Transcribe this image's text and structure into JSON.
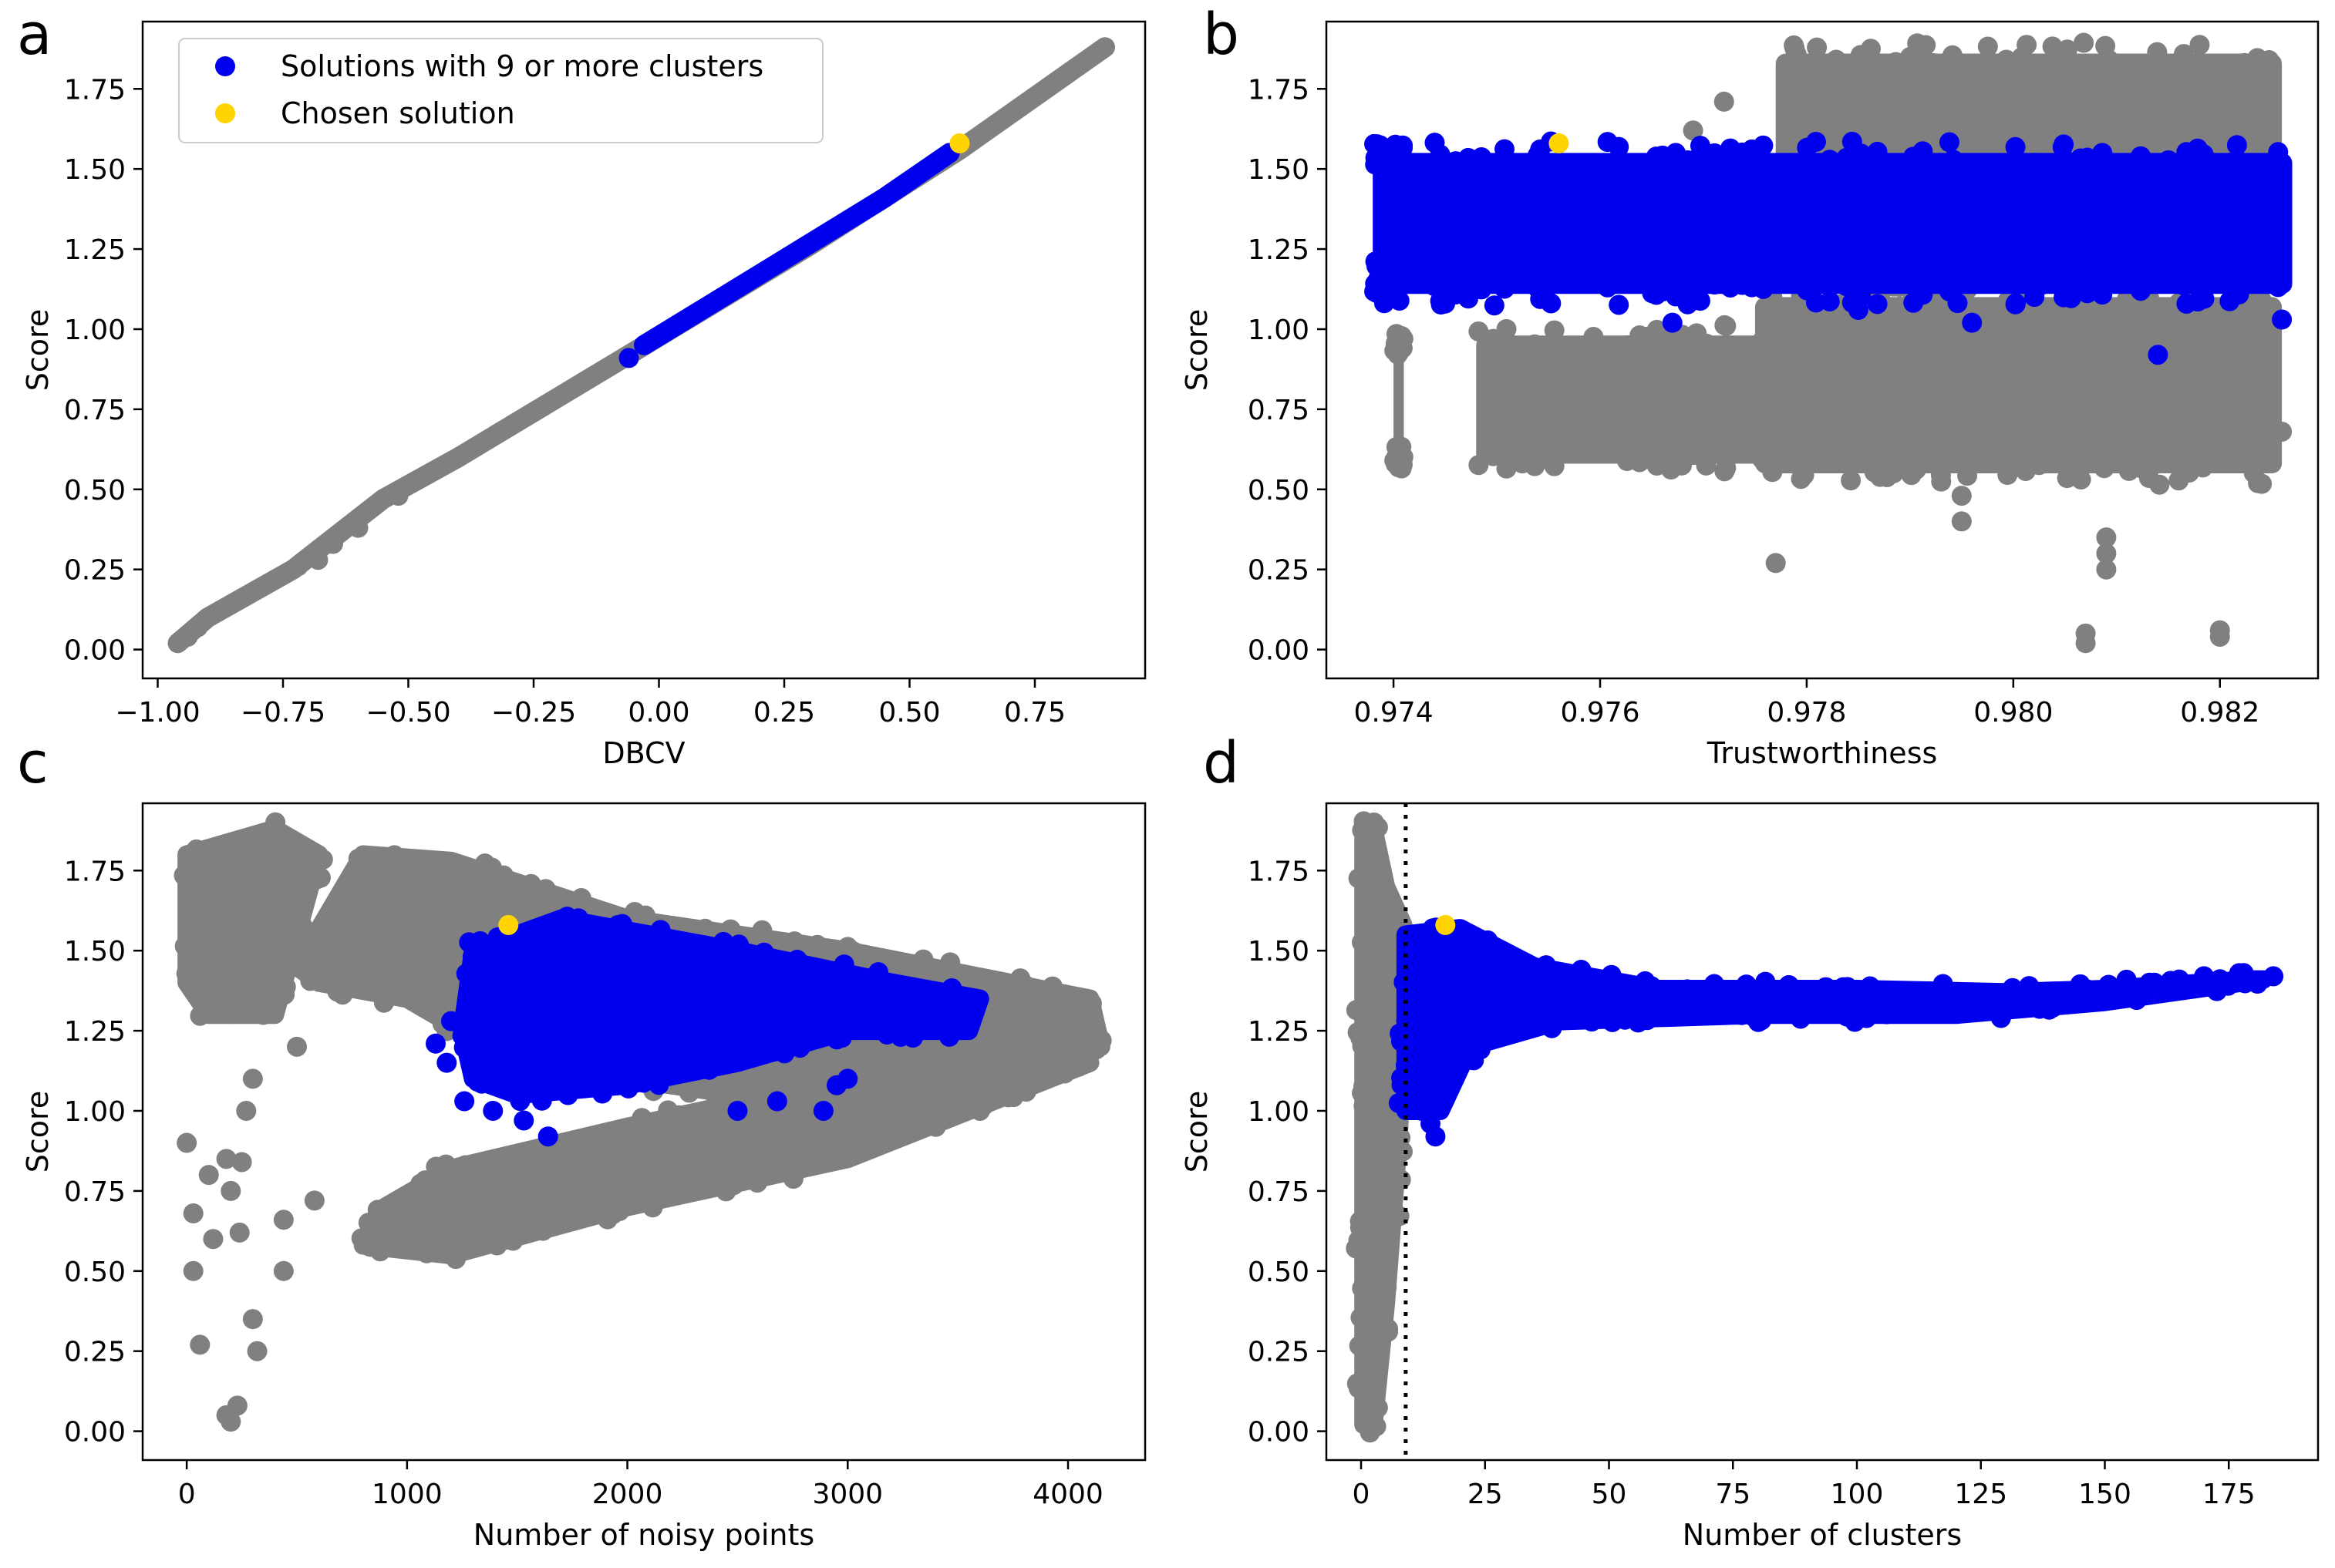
{
  "colors": {
    "gray": "#808080",
    "blue": "#0000ee",
    "yellow": "#ffd400",
    "frame": "#000000",
    "legend_border": "#cccccc"
  },
  "legend": {
    "entries": [
      {
        "label": "Solutions with 9 or more clusters",
        "color": "#0000ee"
      },
      {
        "label": "Chosen solution",
        "color": "#ffd400"
      }
    ]
  },
  "chart_data": [
    {
      "panel": "a",
      "type": "scatter",
      "xlabel": "DBCV",
      "ylabel": "Score",
      "xlim": [
        -1.03,
        0.97
      ],
      "ylim": [
        -0.09,
        1.96
      ],
      "xticks": [
        -1.0,
        -0.75,
        -0.5,
        -0.25,
        0.0,
        0.25,
        0.5,
        0.75
      ],
      "yticks": [
        0.0,
        0.25,
        0.5,
        0.75,
        1.0,
        1.25,
        1.5,
        1.75
      ],
      "legend_position": "upper-left",
      "series": [
        {
          "color": "gray",
          "kind": "band",
          "polyline": [
            [
              -0.96,
              0.02
            ],
            [
              -0.9,
              0.1
            ],
            [
              -0.73,
              0.25
            ],
            [
              -0.55,
              0.47
            ],
            [
              -0.4,
              0.6
            ],
            [
              -0.06,
              0.92
            ],
            [
              0.3,
              1.26
            ],
            [
              0.6,
              1.56
            ],
            [
              0.89,
              1.88
            ]
          ],
          "width": 0.05,
          "points": [
            [
              -0.72,
              0.26
            ],
            [
              -0.68,
              0.28
            ],
            [
              -0.65,
              0.33
            ],
            [
              -0.6,
              0.38
            ],
            [
              -0.52,
              0.48
            ],
            [
              -0.94,
              0.04
            ],
            [
              -0.92,
              0.07
            ]
          ]
        },
        {
          "color": "blue",
          "kind": "band",
          "polyline": [
            [
              -0.03,
              0.95
            ],
            [
              0.2,
              1.17
            ],
            [
              0.45,
              1.41
            ],
            [
              0.58,
              1.55
            ]
          ],
          "width": 0.05,
          "points": [
            [
              -0.06,
              0.91
            ]
          ]
        },
        {
          "color": "yellow",
          "kind": "points",
          "points": [
            [
              0.6,
              1.58
            ]
          ]
        }
      ]
    },
    {
      "panel": "b",
      "type": "scatter",
      "xlabel": "Trustworthiness",
      "ylabel": "Score",
      "xlim": [
        0.97335,
        0.98295
      ],
      "ylim": [
        -0.09,
        1.96
      ],
      "xticks": [
        0.974,
        0.976,
        0.978,
        0.98,
        0.982
      ],
      "xtick_labels": [
        "0.974",
        "0.976",
        "0.978",
        "0.980",
        "0.982"
      ],
      "yticks": [
        0.0,
        0.25,
        0.5,
        0.75,
        1.0,
        1.25,
        1.5,
        1.75
      ],
      "series": [
        {
          "color": "gray",
          "kind": "rects",
          "rects": [
            [
              0.9748,
              0.9776,
              0.58,
              0.98
            ],
            [
              0.9775,
              0.9826,
              0.55,
              1.1
            ],
            [
              0.9777,
              0.9826,
              1.48,
              1.86
            ],
            [
              0.974,
              0.9741,
              0.6,
              0.95
            ]
          ],
          "points": [
            [
              0.9777,
              0.27
            ],
            [
              0.9807,
              0.05
            ],
            [
              0.9807,
              0.02
            ],
            [
              0.982,
              0.06
            ],
            [
              0.982,
              0.04
            ],
            [
              0.9809,
              0.3
            ],
            [
              0.9809,
              0.35
            ],
            [
              0.9809,
              0.25
            ],
            [
              0.9795,
              0.4
            ],
            [
              0.9795,
              0.48
            ],
            [
              0.9825,
              0.65
            ],
            [
              0.9826,
              0.68
            ],
            [
              0.9772,
              1.71
            ],
            [
              0.9769,
              1.62
            ]
          ]
        },
        {
          "color": "blue",
          "kind": "rects",
          "rects": [
            [
              0.9738,
              0.9827,
              1.11,
              1.55
            ],
            [
              0.9738,
              0.9741,
              1.18,
              1.54
            ]
          ],
          "points": [
            [
              0.9767,
              1.02
            ],
            [
              0.9796,
              1.02
            ],
            [
              0.9814,
              0.92
            ],
            [
              0.9826,
              1.03
            ],
            [
              0.9745,
              1.08
            ],
            [
              0.9785,
              1.06
            ]
          ]
        },
        {
          "color": "yellow",
          "kind": "points",
          "points": [
            [
              0.9756,
              1.58
            ]
          ]
        }
      ]
    },
    {
      "panel": "c",
      "type": "scatter",
      "xlabel": "Number of noisy points",
      "ylabel": "Score",
      "xlim": [
        -200,
        4350
      ],
      "ylim": [
        -0.09,
        1.96
      ],
      "xticks": [
        0,
        1000,
        2000,
        3000,
        4000
      ],
      "yticks": [
        0.0,
        0.25,
        0.5,
        0.75,
        1.0,
        1.25,
        1.5,
        1.75
      ],
      "series": [
        {
          "color": "gray",
          "kind": "polygons",
          "polygons": [
            [
              [
                0,
                1.4
              ],
              [
                0,
                1.8
              ],
              [
                400,
                1.88
              ],
              [
                600,
                1.8
              ],
              [
                500,
                1.55
              ],
              [
                400,
                1.3
              ],
              [
                100,
                1.3
              ]
            ],
            [
              [
                500,
                1.45
              ],
              [
                800,
                1.8
              ],
              [
                1200,
                1.78
              ],
              [
                2000,
                1.6
              ],
              [
                3000,
                1.5
              ],
              [
                4100,
                1.35
              ],
              [
                4150,
                1.2
              ],
              [
                3500,
                1.1
              ],
              [
                2500,
                1.05
              ],
              [
                1500,
                1.15
              ],
              [
                1000,
                1.35
              ],
              [
                600,
                1.4
              ]
            ],
            [
              [
                800,
                0.58
              ],
              [
                1200,
                0.55
              ],
              [
                2000,
                0.7
              ],
              [
                3000,
                0.85
              ],
              [
                4100,
                1.15
              ],
              [
                4000,
                1.25
              ],
              [
                3000,
                1.1
              ],
              [
                2000,
                0.95
              ],
              [
                1200,
                0.82
              ],
              [
                900,
                0.7
              ]
            ]
          ],
          "points": [
            [
              0,
              0.9
            ],
            [
              30,
              0.5
            ],
            [
              30,
              0.68
            ],
            [
              60,
              0.27
            ],
            [
              180,
              0.05
            ],
            [
              200,
              0.03
            ],
            [
              230,
              0.08
            ],
            [
              300,
              0.35
            ],
            [
              320,
              0.25
            ],
            [
              440,
              0.5
            ],
            [
              440,
              0.66
            ],
            [
              580,
              0.72
            ],
            [
              120,
              0.6
            ],
            [
              180,
              0.85
            ],
            [
              250,
              0.84
            ],
            [
              270,
              1.0
            ],
            [
              300,
              1.1
            ],
            [
              500,
              1.2
            ],
            [
              3600,
              1.0
            ],
            [
              3700,
              1.05
            ],
            [
              3400,
              0.95
            ],
            [
              2900,
              0.95
            ],
            [
              100,
              0.8
            ],
            [
              200,
              0.75
            ],
            [
              240,
              0.62
            ]
          ]
        },
        {
          "color": "blue",
          "kind": "polygons",
          "polygons": [
            [
              [
                1250,
                1.25
              ],
              [
                1300,
                1.5
              ],
              [
                1700,
                1.6
              ],
              [
                2500,
                1.5
              ],
              [
                3200,
                1.4
              ],
              [
                3600,
                1.35
              ],
              [
                3550,
                1.25
              ],
              [
                3000,
                1.25
              ],
              [
                2500,
                1.15
              ],
              [
                2000,
                1.08
              ],
              [
                1500,
                1.05
              ],
              [
                1300,
                1.1
              ]
            ]
          ],
          "points": [
            [
              1130,
              1.21
            ],
            [
              1180,
              1.15
            ],
            [
              1260,
              1.03
            ],
            [
              1390,
              1.0
            ],
            [
              1530,
              0.97
            ],
            [
              1640,
              0.92
            ],
            [
              2500,
              1.0
            ],
            [
              2680,
              1.03
            ],
            [
              2890,
              1.0
            ],
            [
              2950,
              1.08
            ],
            [
              3000,
              1.1
            ],
            [
              1200,
              1.28
            ]
          ]
        },
        {
          "color": "yellow",
          "kind": "points",
          "points": [
            [
              1460,
              1.58
            ]
          ]
        }
      ]
    },
    {
      "panel": "d",
      "type": "scatter",
      "xlabel": "Number of clusters",
      "ylabel": "Score",
      "xlim": [
        -7,
        193
      ],
      "ylim": [
        -0.09,
        1.96
      ],
      "xticks": [
        0,
        25,
        50,
        75,
        100,
        125,
        150,
        175
      ],
      "yticks": [
        0.0,
        0.25,
        0.5,
        0.75,
        1.0,
        1.25,
        1.5,
        1.75
      ],
      "vline": {
        "x": 9,
        "style": "dotted"
      },
      "series": [
        {
          "color": "gray",
          "kind": "polygons",
          "polygons": [
            [
              [
                0.5,
                0.02
              ],
              [
                2.5,
                0.02
              ],
              [
                5,
                0.4
              ],
              [
                7.5,
                0.9
              ],
              [
                8.5,
                1.2
              ],
              [
                8.5,
                1.58
              ],
              [
                5,
                1.7
              ],
              [
                2.5,
                1.88
              ],
              [
                0.5,
                1.88
              ]
            ]
          ],
          "points": [
            [
              2,
              0.04
            ],
            [
              2,
              0.08
            ]
          ]
        },
        {
          "color": "blue",
          "kind": "polygons",
          "polygons": [
            [
              [
                9,
                1.0
              ],
              [
                9,
                1.55
              ],
              [
                20,
                1.57
              ],
              [
                35,
                1.45
              ],
              [
                60,
                1.38
              ],
              [
                100,
                1.38
              ],
              [
                130,
                1.37
              ],
              [
                150,
                1.38
              ],
              [
                180,
                1.41
              ],
              [
                182,
                1.41
              ],
              [
                150,
                1.34
              ],
              [
                120,
                1.3
              ],
              [
                80,
                1.3
              ],
              [
                40,
                1.28
              ],
              [
                22,
                1.2
              ],
              [
                16,
                1.0
              ],
              [
                12,
                1.0
              ]
            ]
          ],
          "points": [
            [
              15,
              0.92
            ],
            [
              14,
              0.96
            ],
            [
              170,
              1.42
            ],
            [
              178,
              1.43
            ],
            [
              184,
              1.42
            ],
            [
              165,
              1.41
            ],
            [
              160,
              1.4
            ]
          ]
        },
        {
          "color": "yellow",
          "kind": "points",
          "points": [
            [
              17,
              1.58
            ]
          ]
        }
      ]
    }
  ]
}
